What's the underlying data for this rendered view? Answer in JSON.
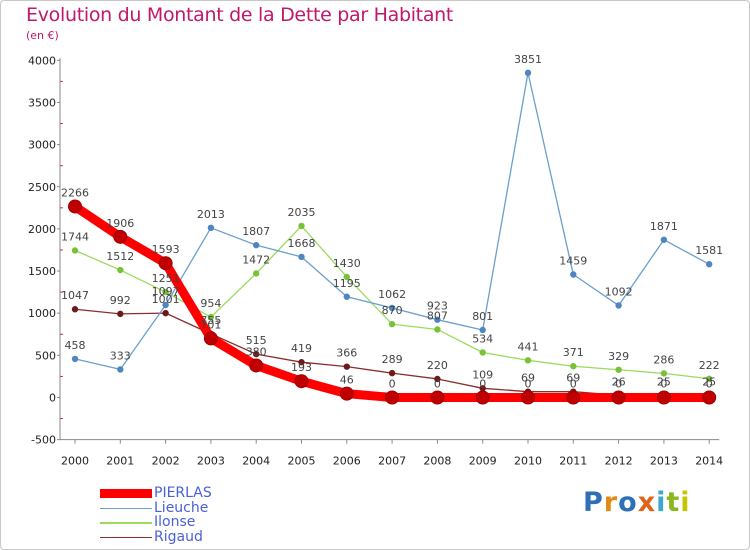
{
  "title": "Evolution du Montant de la Dette par Habitant",
  "subtitle": "(en €)",
  "logo": {
    "text": "Proxiti",
    "letters": [
      {
        "ch": "P",
        "color": "#2f6fb5"
      },
      {
        "ch": "r",
        "color": "#e08a1a"
      },
      {
        "ch": "o",
        "color": "#2f6fb5"
      },
      {
        "ch": "x",
        "color": "#e0631a"
      },
      {
        "ch": "i",
        "color": "#3aa9d0"
      },
      {
        "ch": "t",
        "color": "#8ab71a"
      },
      {
        "ch": "i",
        "color": "#c7c400"
      }
    ]
  },
  "chart_data": {
    "type": "line",
    "x": [
      "2000",
      "2001",
      "2002",
      "2003",
      "2004",
      "2005",
      "2006",
      "2007",
      "2008",
      "2009",
      "2010",
      "2011",
      "2012",
      "2013",
      "2014"
    ],
    "y_ticks": [
      "-500",
      "0",
      "500",
      "1000",
      "1500",
      "2000",
      "2500",
      "3000",
      "3500",
      "4000"
    ],
    "ylim": [
      -500,
      4000
    ],
    "grid": false,
    "legend_position": "bottom-left",
    "series": [
      {
        "name": "PIERLAS",
        "color": "#ff0000",
        "marker_color": "#c00000",
        "values": [
          2266,
          1906,
          1593,
          701,
          380,
          193,
          46,
          0,
          0,
          0,
          0,
          0,
          0,
          0,
          0
        ],
        "labels": [
          "2266",
          "1906",
          "1593",
          "701",
          "380",
          "193",
          "46",
          "0",
          "0",
          "0",
          "0",
          "0",
          "0",
          "0",
          "0"
        ]
      },
      {
        "name": "Lieuche",
        "color": "#6a9fce",
        "marker_color": "#4f86c0",
        "values": [
          458,
          333,
          1097,
          2013,
          1807,
          1668,
          1195,
          1062,
          923,
          801,
          3851,
          1459,
          1092,
          1871,
          1581
        ],
        "labels": [
          "458",
          "333",
          "1097",
          "2013",
          "1807",
          "1668",
          "1195",
          "1062",
          "923",
          "801",
          "3851",
          "1459",
          "1092",
          "1871",
          "1581"
        ]
      },
      {
        "name": "Ilonse",
        "color": "#9bdb5c",
        "marker_color": "#78c23a",
        "values": [
          1744,
          1512,
          1251,
          954,
          1472,
          2035,
          1430,
          870,
          807,
          534,
          441,
          371,
          329,
          286,
          222
        ],
        "labels": [
          "1744",
          "1512",
          "1251",
          "954",
          "1472",
          "2035",
          "1430",
          "870",
          "807",
          "534",
          "441",
          "371",
          "329",
          "286",
          "222"
        ]
      },
      {
        "name": "Rigaud",
        "color": "#8a2e2e",
        "marker_color": "#6e1a1a",
        "values": [
          1047,
          992,
          1001,
          755,
          515,
          419,
          366,
          289,
          220,
          109,
          69,
          69,
          26,
          25,
          25
        ],
        "labels": [
          "1047",
          "992",
          "1001",
          "755",
          "515",
          "419",
          "366",
          "289",
          "220",
          "109",
          "69",
          "69",
          "26",
          "25",
          "25"
        ]
      }
    ]
  }
}
